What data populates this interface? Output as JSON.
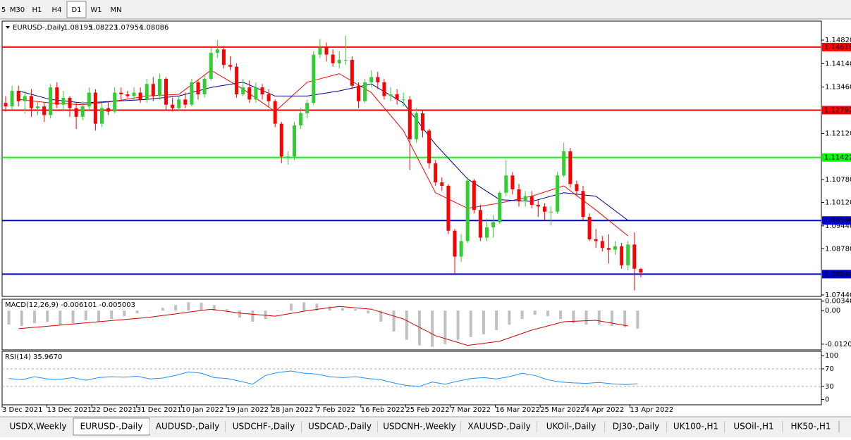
{
  "toolbar": {
    "timeframes": [
      "5",
      "M30",
      "H1",
      "H4",
      "D1",
      "W1",
      "MN"
    ],
    "active": "D1"
  },
  "chart_data": [
    {
      "type": "candlestick",
      "title": "EURUSD-,Daily",
      "open": [
        1.13,
        1.129,
        1.1335,
        1.1305,
        1.132,
        1.1285,
        1.129,
        1.1265,
        1.1345,
        1.1295,
        1.1315,
        1.1285,
        1.126,
        1.129,
        1.133,
        1.124,
        1.1285,
        1.1275,
        1.133,
        1.1325,
        1.132,
        1.133,
        1.131,
        1.1355,
        1.132,
        1.137,
        1.1295,
        1.1285,
        1.131,
        1.1295,
        1.136,
        1.1325,
        1.137,
        1.1445,
        1.1455,
        1.141,
        1.1405,
        1.1325,
        1.1345,
        1.131,
        1.1345,
        1.1325,
        1.1305,
        1.124,
        1.1145,
        1.1145,
        1.1235,
        1.127,
        1.13,
        1.144,
        1.146,
        1.144,
        1.1415,
        1.1425,
        1.1425,
        1.135,
        1.1305,
        1.136,
        1.1375,
        1.136,
        1.132,
        1.1325,
        1.131,
        1.131,
        1.1195,
        1.127,
        1.122,
        1.1125,
        1.107,
        1.106,
        1.093,
        1.0855,
        1.09,
        1.1075,
        1.099,
        1.091,
        1.094,
        1.0955,
        1.104,
        1.109,
        1.105,
        1.1015,
        1.103,
        1.1005,
        1.1,
        1.0985,
        1.0985,
        1.109,
        1.116,
        1.1065,
        1.1045,
        1.097,
        1.0905,
        1.09,
        1.088,
        1.0875,
        1.0885,
        1.083,
        1.089,
        1.08195
      ],
      "high": [
        1.132,
        1.135,
        1.135,
        1.1335,
        1.134,
        1.1305,
        1.13,
        1.1355,
        1.136,
        1.1335,
        1.132,
        1.13,
        1.1305,
        1.1345,
        1.134,
        1.13,
        1.1305,
        1.1345,
        1.1345,
        1.1335,
        1.1345,
        1.1345,
        1.137,
        1.1375,
        1.1385,
        1.1375,
        1.1315,
        1.132,
        1.133,
        1.137,
        1.1365,
        1.138,
        1.146,
        1.1482,
        1.1465,
        1.1435,
        1.1415,
        1.137,
        1.1365,
        1.136,
        1.1355,
        1.134,
        1.131,
        1.1245,
        1.116,
        1.1245,
        1.1285,
        1.131,
        1.145,
        1.1485,
        1.1475,
        1.1455,
        1.145,
        1.1495,
        1.1435,
        1.136,
        1.137,
        1.1395,
        1.139,
        1.137,
        1.1345,
        1.134,
        1.133,
        1.132,
        1.1285,
        1.128,
        1.1225,
        1.1135,
        1.1085,
        1.1065,
        1.0935,
        1.092,
        1.1085,
        1.108,
        1.1005,
        1.0965,
        1.0975,
        1.1045,
        1.1135,
        1.11,
        1.1065,
        1.1045,
        1.1045,
        1.102,
        1.101,
        1.1,
        1.11,
        1.1185,
        1.117,
        1.1075,
        1.106,
        1.098,
        1.0935,
        1.0915,
        1.092,
        1.09,
        1.0895,
        1.09,
        1.0925,
        1.08223
      ],
      "low": [
        1.1275,
        1.128,
        1.129,
        1.127,
        1.126,
        1.1265,
        1.1245,
        1.1255,
        1.1285,
        1.1275,
        1.126,
        1.1225,
        1.125,
        1.1275,
        1.122,
        1.123,
        1.1265,
        1.127,
        1.131,
        1.1315,
        1.131,
        1.13,
        1.13,
        1.1305,
        1.131,
        1.128,
        1.1275,
        1.1275,
        1.1285,
        1.129,
        1.131,
        1.1315,
        1.1365,
        1.143,
        1.14,
        1.1395,
        1.1315,
        1.132,
        1.13,
        1.13,
        1.131,
        1.129,
        1.123,
        1.1125,
        1.1121,
        1.1135,
        1.1225,
        1.1255,
        1.1295,
        1.143,
        1.142,
        1.1405,
        1.14,
        1.141,
        1.134,
        1.1285,
        1.13,
        1.1345,
        1.134,
        1.131,
        1.1305,
        1.1295,
        1.129,
        1.1106,
        1.1185,
        1.12,
        1.111,
        1.106,
        1.1045,
        1.092,
        1.0806,
        1.084,
        1.0895,
        1.098,
        1.09,
        1.09,
        1.091,
        1.095,
        1.103,
        1.1035,
        1.1,
        1.1,
        1.0995,
        1.097,
        1.096,
        1.0945,
        1.098,
        1.1085,
        1.1055,
        1.103,
        1.096,
        1.09,
        1.088,
        1.087,
        1.0835,
        1.086,
        1.082,
        1.0815,
        1.0757,
        1.07954
      ],
      "close": [
        1.129,
        1.1335,
        1.1305,
        1.132,
        1.1285,
        1.129,
        1.1265,
        1.1345,
        1.1295,
        1.1315,
        1.1285,
        1.126,
        1.129,
        1.133,
        1.124,
        1.1285,
        1.1275,
        1.133,
        1.1325,
        1.132,
        1.133,
        1.131,
        1.1355,
        1.132,
        1.137,
        1.1295,
        1.1285,
        1.131,
        1.1295,
        1.136,
        1.1325,
        1.137,
        1.1445,
        1.1455,
        1.141,
        1.1405,
        1.1325,
        1.1345,
        1.131,
        1.1345,
        1.1325,
        1.1305,
        1.124,
        1.1145,
        1.1145,
        1.1235,
        1.127,
        1.13,
        1.144,
        1.146,
        1.144,
        1.1415,
        1.1425,
        1.1425,
        1.135,
        1.1305,
        1.136,
        1.1375,
        1.136,
        1.132,
        1.1325,
        1.131,
        1.131,
        1.1195,
        1.127,
        1.122,
        1.1125,
        1.107,
        1.106,
        1.093,
        1.0855,
        1.09,
        1.1075,
        1.099,
        1.091,
        1.094,
        1.0955,
        1.104,
        1.109,
        1.105,
        1.1015,
        1.103,
        1.1005,
        1.1,
        1.0985,
        1.0985,
        1.109,
        1.116,
        1.1065,
        1.1045,
        1.097,
        1.0905,
        1.09,
        1.088,
        1.0875,
        1.0885,
        1.083,
        1.089,
        1.082,
        1.08086
      ],
      "up_color": "#32cd32",
      "down_color": "#ff0000",
      "ylim": [
        1.07399,
        1.1537
      ],
      "yticks": [
        {
          "value": 1.1482,
          "label": "1.14820"
        },
        {
          "value": 1.1414,
          "label": "1.14140"
        },
        {
          "value": 1.1346,
          "label": "1.13460"
        },
        {
          "value": 1.1212,
          "label": "1.12120"
        },
        {
          "value": 1.1078,
          "label": "1.10780"
        },
        {
          "value": 1.1012,
          "label": "1.10120"
        },
        {
          "value": 1.0944,
          "label": "1.09440"
        },
        {
          "value": 1.0878,
          "label": "1.08780"
        },
        {
          "value": 1.0744,
          "label": "1.07440"
        }
      ],
      "hlines": [
        {
          "value": 1.14618,
          "color": "#ff0000"
        },
        {
          "value": 1.12792,
          "color": "#ff0000"
        },
        {
          "value": 1.11422,
          "color": "#00ff00"
        },
        {
          "value": 1.09596,
          "color": "#0000cd"
        },
        {
          "value": 1.08044,
          "color": "#0000cd"
        }
      ],
      "moving_averages": [
        {
          "color": "#ff0000",
          "values": [
            1.131,
            1.13,
            1.1295,
            1.1305,
            1.132,
            1.1325,
            1.1395,
            1.134,
            1.1275,
            1.136,
            1.1385,
            1.133,
            1.122,
            1.104,
            1.0995,
            1.101,
            1.103,
            1.106,
            1.099,
            1.0915
          ]
        },
        {
          "color": "#00008b",
          "values": [
            1.1335,
            1.131,
            1.13,
            1.1305,
            1.131,
            1.132,
            1.1345,
            1.136,
            1.132,
            1.132,
            1.1335,
            1.1355,
            1.13,
            1.118,
            1.108,
            1.102,
            1.1015,
            1.104,
            1.103,
            1.096
          ]
        }
      ],
      "xlabels": [
        "3 Dec 2021",
        "13 Dec 2021",
        "22 Dec 2021",
        "31 Dec 2021",
        "10 Jan 2022",
        "19 Jan 2022",
        "28 Jan 2022",
        "7 Feb 2022",
        "16 Feb 2022",
        "25 Feb 2022",
        "7 Mar 2022",
        "16 Mar 2022",
        "25 Mar 2022",
        "4 Apr 2022",
        "13 Apr 2022"
      ]
    },
    {
      "type": "macd",
      "title": "MACD(12,26,9) -0.006101 -0.005003",
      "histogram": [
        -0.005,
        -0.0055,
        -0.0045,
        -0.004,
        -0.005,
        -0.0045,
        -0.0035,
        -0.004,
        -0.003,
        -0.002,
        -0.001,
        0.0,
        0.001,
        0.002,
        0.003,
        0.0028,
        0.002,
        0.0005,
        -0.0025,
        -0.004,
        -0.003,
        0.0,
        0.0025,
        0.003,
        0.0025,
        0.0015,
        0.001,
        0.0005,
        -0.001,
        -0.004,
        -0.0075,
        -0.0105,
        -0.0125,
        -0.013,
        -0.012,
        -0.0105,
        -0.0095,
        -0.0085,
        -0.007,
        -0.005,
        -0.003,
        -0.0015,
        -0.002,
        -0.003,
        -0.0045,
        -0.005,
        -0.005,
        -0.0055,
        -0.006,
        -0.0065
      ],
      "histogram_color": "#c0c0c0",
      "signal": [
        -0.0065,
        -0.0055,
        -0.0045,
        -0.0035,
        -0.0025,
        -0.001,
        0.0005,
        -0.001,
        -0.002,
        0.0,
        0.0015,
        0.0005,
        -0.003,
        -0.009,
        -0.0125,
        -0.011,
        -0.007,
        -0.004,
        -0.0035,
        -0.0055
      ],
      "signal_color": "#cc0000",
      "ylim": [
        -0.01411,
        0.0041
      ],
      "yticks": [
        0.003408,
        {
          "value": 0,
          "label": "0.00"
        },
        -0.012058
      ]
    },
    {
      "type": "rsi",
      "title": "RSI(14) 35.9670",
      "values": [
        48,
        45,
        52,
        47,
        46,
        50,
        44,
        50,
        52,
        51,
        53,
        47,
        49,
        55,
        63,
        60,
        50,
        48,
        42,
        35,
        55,
        62,
        65,
        60,
        58,
        52,
        50,
        52,
        48,
        45,
        38,
        32,
        30,
        40,
        35,
        42,
        48,
        50,
        47,
        52,
        60,
        55,
        45,
        40,
        38,
        37,
        39,
        36,
        34,
        36
      ],
      "color": "#1e90ff",
      "ylim": [
        -12,
        110
      ],
      "yticks": [
        100,
        70,
        30,
        0
      ],
      "levels": [
        70,
        30
      ]
    }
  ],
  "tabs": {
    "items": [
      "USDX,Weekly",
      "EURUSD-,Daily",
      "AUDUSD-,Daily",
      "USDCHF-,Daily",
      "USDCAD-,Daily",
      "USDCNH-,Weekly",
      "XAUUSD-,Daily",
      "UKOil-,Daily",
      "DJ30-,Daily",
      "UK100-,H1",
      "USOil-,H1",
      "HK50-,H1"
    ],
    "active": 1
  }
}
